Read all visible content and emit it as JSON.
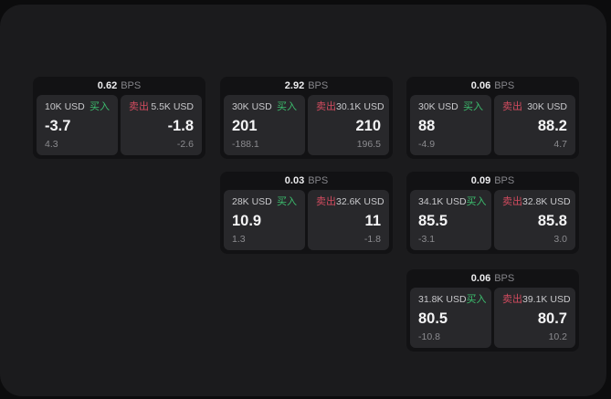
{
  "theme": {
    "outer_bg": "#0c0c0d",
    "canvas_bg": "#1b1b1d",
    "card_bg": "#121214",
    "panel_bg": "#28282b",
    "buy_color": "#3cbe6e",
    "sell_color": "#d24b5f"
  },
  "labels": {
    "bps": "BPS",
    "buy": "买入",
    "sell": "卖出"
  },
  "cards": [
    {
      "bps": "0.62",
      "buy": {
        "amount": "10K USD",
        "price": "-3.7",
        "delta": "4.3"
      },
      "sell": {
        "amount": "5.5K USD",
        "price": "-1.8",
        "delta": "-2.6"
      }
    },
    {
      "bps": "2.92",
      "buy": {
        "amount": "30K USD",
        "price": "201",
        "delta": "-188.1"
      },
      "sell": {
        "amount": "30.1K USD",
        "price": "210",
        "delta": "196.5"
      }
    },
    {
      "bps": "0.06",
      "buy": {
        "amount": "30K USD",
        "price": "88",
        "delta": "-4.9"
      },
      "sell": {
        "amount": "30K USD",
        "price": "88.2",
        "delta": "4.7"
      }
    },
    {
      "bps": "0.03",
      "buy": {
        "amount": "28K USD",
        "price": "10.9",
        "delta": "1.3"
      },
      "sell": {
        "amount": "32.6K USD",
        "price": "11",
        "delta": "-1.8"
      }
    },
    {
      "bps": "0.09",
      "buy": {
        "amount": "34.1K USD",
        "price": "85.5",
        "delta": "-3.1"
      },
      "sell": {
        "amount": "32.8K USD",
        "price": "85.8",
        "delta": "3.0"
      }
    },
    {
      "bps": "0.06",
      "buy": {
        "amount": "31.8K USD",
        "price": "80.5",
        "delta": "-10.8"
      },
      "sell": {
        "amount": "39.1K USD",
        "price": "80.7",
        "delta": "10.2"
      }
    }
  ]
}
